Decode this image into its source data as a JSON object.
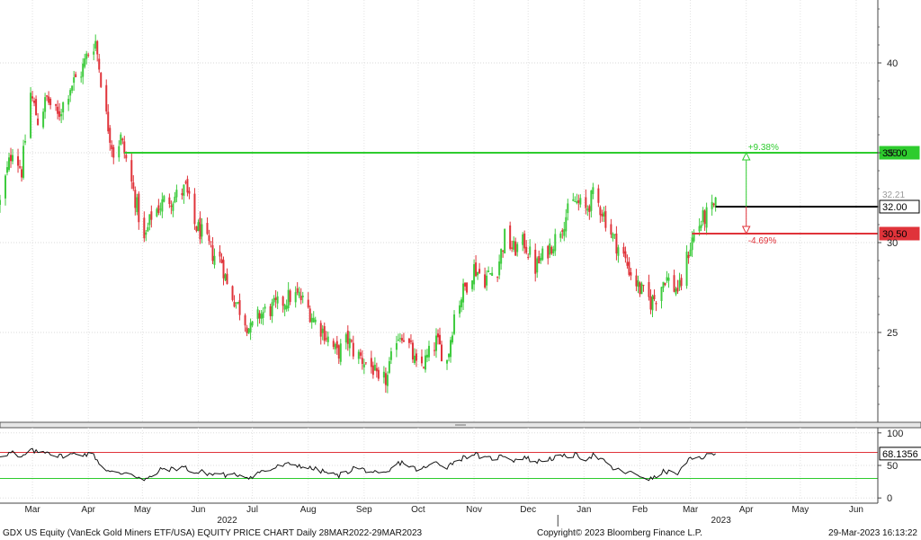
{
  "footer": {
    "left": "GDX US Equity (VanEck Gold Miners ETF/USA) EQUITY PRICE CHART  Daily 28MAR2022-29MAR2023",
    "center": "Copyright© 2023 Bloomberg Finance L.P.",
    "right": "29-Mar-2023 16:13:22"
  },
  "chart_data": [
    {
      "type": "candlestick",
      "title": "",
      "xlabel": "",
      "ylabel": "",
      "ylim": [
        20,
        43.5
      ],
      "y_ticks": [
        25,
        30,
        35,
        40
      ],
      "x_range": [
        "2022-02-25",
        "2023-06-27"
      ],
      "months": [
        {
          "label": "Mar",
          "date": "2022-03-15"
        },
        {
          "label": "Apr",
          "date": "2022-04-15"
        },
        {
          "label": "May",
          "date": "2022-05-15"
        },
        {
          "label": "Jun",
          "date": "2022-06-15"
        },
        {
          "label": "Jul",
          "date": "2022-07-15"
        },
        {
          "label": "Aug",
          "date": "2022-08-15"
        },
        {
          "label": "Sep",
          "date": "2022-09-15"
        },
        {
          "label": "Oct",
          "date": "2022-10-15"
        },
        {
          "label": "Nov",
          "date": "2022-11-15"
        },
        {
          "label": "Dec",
          "date": "2022-12-15"
        },
        {
          "label": "Jan",
          "date": "2023-01-15"
        },
        {
          "label": "Feb",
          "date": "2023-02-15"
        },
        {
          "label": "Mar",
          "date": "2023-03-15"
        },
        {
          "label": "Apr",
          "date": "2023-04-15"
        },
        {
          "label": "May",
          "date": "2023-05-15"
        },
        {
          "label": "Jun",
          "date": "2023-06-15"
        }
      ],
      "years": [
        {
          "label": "2022",
          "date": "2022-07-01"
        },
        {
          "label": "2023",
          "date": "2023-04-01"
        }
      ],
      "year_divider": "2023-01-01",
      "grid": true,
      "up_color": "#3ecb3e",
      "down_color": "#e0333a",
      "close_path": [
        [
          "2022-02-25",
          32.2
        ],
        [
          "2022-03-04",
          35.3
        ],
        [
          "2022-03-09",
          34.0
        ],
        [
          "2022-03-14",
          38.3
        ],
        [
          "2022-03-18",
          36.8
        ],
        [
          "2022-03-23",
          38.0
        ],
        [
          "2022-03-29",
          37.0
        ],
        [
          "2022-04-05",
          38.7
        ],
        [
          "2022-04-11",
          39.5
        ],
        [
          "2022-04-15",
          40.6
        ],
        [
          "2022-04-19",
          41.2
        ],
        [
          "2022-04-25",
          37.0
        ],
        [
          "2022-04-29",
          35.0
        ],
        [
          "2022-05-03",
          35.8
        ],
        [
          "2022-05-06",
          34.6
        ],
        [
          "2022-05-12",
          32.0
        ],
        [
          "2022-05-16",
          30.0
        ],
        [
          "2022-05-20",
          31.5
        ],
        [
          "2022-05-27",
          32.3
        ],
        [
          "2022-06-03",
          32.6
        ],
        [
          "2022-06-08",
          33.0
        ],
        [
          "2022-06-13",
          31.0
        ],
        [
          "2022-06-17",
          30.5
        ],
        [
          "2022-06-23",
          29.4
        ],
        [
          "2022-06-28",
          29.0
        ],
        [
          "2022-07-01",
          27.6
        ],
        [
          "2022-07-07",
          26.5
        ],
        [
          "2022-07-14",
          25.1
        ],
        [
          "2022-07-19",
          26.0
        ],
        [
          "2022-07-25",
          26.3
        ],
        [
          "2022-07-29",
          26.5
        ],
        [
          "2022-08-05",
          27.0
        ],
        [
          "2022-08-10",
          27.0
        ],
        [
          "2022-08-15",
          26.3
        ],
        [
          "2022-08-19",
          25.6
        ],
        [
          "2022-08-24",
          25.0
        ],
        [
          "2022-08-31",
          23.8
        ],
        [
          "2022-09-06",
          24.6
        ],
        [
          "2022-09-09",
          24.0
        ],
        [
          "2022-09-14",
          23.5
        ],
        [
          "2022-09-20",
          23.0
        ],
        [
          "2022-09-23",
          22.0
        ],
        [
          "2022-09-28",
          22.5
        ],
        [
          "2022-10-03",
          24.8
        ],
        [
          "2022-10-06",
          25.0
        ],
        [
          "2022-10-11",
          24.0
        ],
        [
          "2022-10-14",
          23.0
        ],
        [
          "2022-10-19",
          23.4
        ],
        [
          "2022-10-25",
          24.5
        ],
        [
          "2022-10-31",
          23.4
        ],
        [
          "2022-11-04",
          26.0
        ],
        [
          "2022-11-09",
          27.3
        ],
        [
          "2022-11-15",
          28.6
        ],
        [
          "2022-11-21",
          28.0
        ],
        [
          "2022-11-28",
          28.6
        ],
        [
          "2022-12-02",
          30.3
        ],
        [
          "2022-12-07",
          29.6
        ],
        [
          "2022-12-13",
          30.0
        ],
        [
          "2022-12-19",
          28.6
        ],
        [
          "2022-12-23",
          29.2
        ],
        [
          "2022-12-30",
          30.2
        ],
        [
          "2023-01-05",
          31.5
        ],
        [
          "2023-01-10",
          32.3
        ],
        [
          "2023-01-16",
          31.8
        ],
        [
          "2023-01-20",
          32.6
        ],
        [
          "2023-01-25",
          31.8
        ],
        [
          "2023-01-31",
          30.3
        ],
        [
          "2023-02-06",
          29.2
        ],
        [
          "2023-02-10",
          28.3
        ],
        [
          "2023-02-15",
          27.4
        ],
        [
          "2023-02-21",
          26.7
        ],
        [
          "2023-02-24",
          27.0
        ],
        [
          "2023-03-01",
          28.1
        ],
        [
          "2023-03-06",
          27.5
        ],
        [
          "2023-03-09",
          27.4
        ],
        [
          "2023-03-14",
          29.5
        ],
        [
          "2023-03-17",
          30.5
        ],
        [
          "2023-03-22",
          31.3
        ],
        [
          "2023-03-29",
          32.0
        ]
      ],
      "levels": [
        {
          "label": "35.00",
          "value": 35.0,
          "color": "#2ecc2e",
          "from_date": "2022-05-05"
        },
        {
          "label": "32.00",
          "value": 32.0,
          "color": "#000000",
          "from_date": "2023-03-29"
        },
        {
          "label": "30.50",
          "value": 30.5,
          "color": "#e0333a",
          "from_date": "2023-03-16"
        }
      ],
      "hidden_label": "32.21",
      "annotations": [
        {
          "text": "+9.38%",
          "color": "#2ecc2e",
          "date": "2023-04-15",
          "from": 32.0,
          "to": 35.0
        },
        {
          "text": "-4.69%",
          "color": "#e0333a",
          "date": "2023-04-15",
          "from": 32.0,
          "to": 30.5
        }
      ]
    },
    {
      "type": "line",
      "title": "",
      "ylim": [
        -8,
        108
      ],
      "y_ticks": [
        0,
        50,
        100
      ],
      "upper_band": 70,
      "lower_band": 30,
      "upper_color": "#e0333a",
      "lower_color": "#2ecc2e",
      "last_label": "68.1356",
      "series": [
        {
          "values": [
            [
              "2022-02-25",
              65
            ],
            [
              "2022-03-04",
              70
            ],
            [
              "2022-03-08",
              60
            ],
            [
              "2022-03-14",
              73
            ],
            [
              "2022-03-18",
              70
            ],
            [
              "2022-03-23",
              72
            ],
            [
              "2022-03-29",
              64
            ],
            [
              "2022-04-04",
              66
            ],
            [
              "2022-04-08",
              68
            ],
            [
              "2022-04-14",
              67
            ],
            [
              "2022-04-18",
              66
            ],
            [
              "2022-04-22",
              50
            ],
            [
              "2022-04-27",
              40
            ],
            [
              "2022-05-03",
              37
            ],
            [
              "2022-05-06",
              41
            ],
            [
              "2022-05-12",
              33
            ],
            [
              "2022-05-16",
              27
            ],
            [
              "2022-05-20",
              32
            ],
            [
              "2022-05-26",
              45
            ],
            [
              "2022-06-01",
              44
            ],
            [
              "2022-06-07",
              48
            ],
            [
              "2022-06-13",
              38
            ],
            [
              "2022-06-17",
              40
            ],
            [
              "2022-06-23",
              36
            ],
            [
              "2022-06-28",
              38
            ],
            [
              "2022-07-01",
              33
            ],
            [
              "2022-07-07",
              36
            ],
            [
              "2022-07-14",
              32
            ],
            [
              "2022-07-19",
              40
            ],
            [
              "2022-07-25",
              43
            ],
            [
              "2022-07-29",
              48
            ],
            [
              "2022-08-05",
              52
            ],
            [
              "2022-08-10",
              50
            ],
            [
              "2022-08-15",
              46
            ],
            [
              "2022-08-19",
              44
            ],
            [
              "2022-08-24",
              40
            ],
            [
              "2022-08-31",
              34
            ],
            [
              "2022-09-06",
              40
            ],
            [
              "2022-09-09",
              46
            ],
            [
              "2022-09-14",
              44
            ],
            [
              "2022-09-20",
              40
            ],
            [
              "2022-09-23",
              35
            ],
            [
              "2022-09-28",
              38
            ],
            [
              "2022-10-03",
              52
            ],
            [
              "2022-10-06",
              55
            ],
            [
              "2022-10-11",
              48
            ],
            [
              "2022-10-14",
              44
            ],
            [
              "2022-10-19",
              46
            ],
            [
              "2022-10-25",
              55
            ],
            [
              "2022-10-31",
              48
            ],
            [
              "2022-11-04",
              56
            ],
            [
              "2022-11-09",
              62
            ],
            [
              "2022-11-15",
              68
            ],
            [
              "2022-11-21",
              60
            ],
            [
              "2022-11-28",
              62
            ],
            [
              "2022-12-02",
              66
            ],
            [
              "2022-12-07",
              58
            ],
            [
              "2022-12-13",
              63
            ],
            [
              "2022-12-19",
              55
            ],
            [
              "2022-12-23",
              58
            ],
            [
              "2022-12-30",
              62
            ],
            [
              "2023-01-05",
              64
            ],
            [
              "2023-01-10",
              66
            ],
            [
              "2023-01-16",
              60
            ],
            [
              "2023-01-20",
              66
            ],
            [
              "2023-01-25",
              58
            ],
            [
              "2023-01-31",
              45
            ],
            [
              "2023-02-06",
              40
            ],
            [
              "2023-02-10",
              38
            ],
            [
              "2023-02-15",
              34
            ],
            [
              "2023-02-21",
              29
            ],
            [
              "2023-02-24",
              32
            ],
            [
              "2023-03-01",
              42
            ],
            [
              "2023-03-06",
              36
            ],
            [
              "2023-03-09",
              40
            ],
            [
              "2023-03-14",
              58
            ],
            [
              "2023-03-17",
              60
            ],
            [
              "2023-03-22",
              63
            ],
            [
              "2023-03-29",
              68.14
            ]
          ]
        }
      ]
    }
  ]
}
